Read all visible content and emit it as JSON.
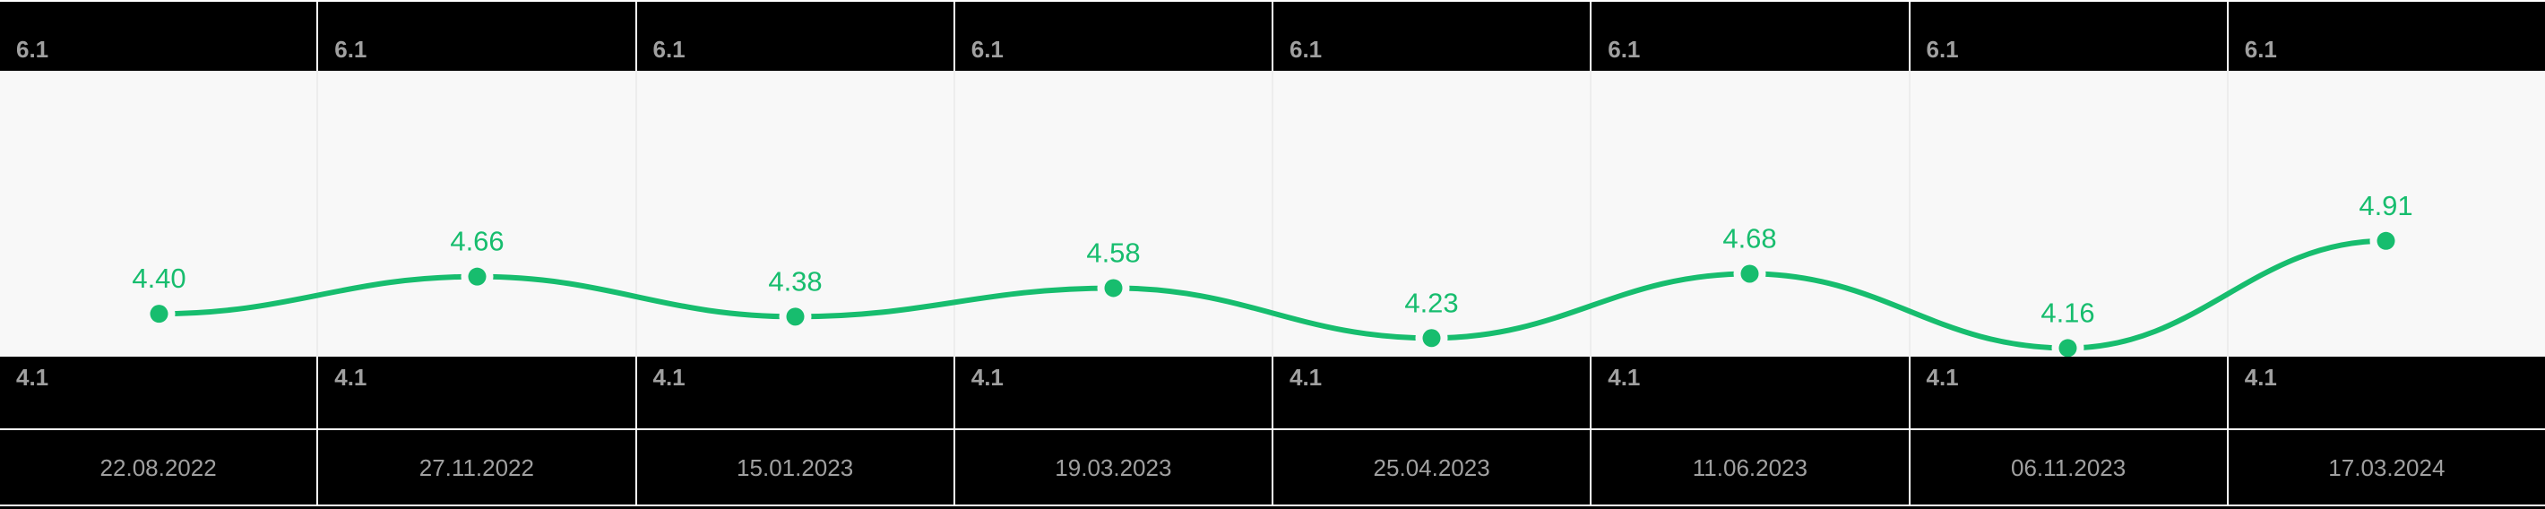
{
  "colors": {
    "accent_green": "#17bd6e",
    "label_gray": "#a0a0a0",
    "row_black": "#000000",
    "plot_bg": "#f8f8f8",
    "plot_grid_line": "#ededed",
    "divider_white": "#ffffff"
  },
  "chart_data": {
    "type": "line",
    "x": [
      "22.08.2022",
      "27.11.2022",
      "15.01.2023",
      "19.03.2023",
      "25.04.2023",
      "11.06.2023",
      "06.11.2023",
      "17.03.2024"
    ],
    "values": [
      4.4,
      4.66,
      4.38,
      4.58,
      4.23,
      4.68,
      4.16,
      4.91
    ],
    "value_labels": [
      "4.40",
      "4.66",
      "4.38",
      "4.58",
      "4.23",
      "4.68",
      "4.16",
      "4.91"
    ],
    "max_labels": [
      "6.1",
      "6.1",
      "6.1",
      "6.1",
      "6.1",
      "6.1",
      "6.1",
      "6.1"
    ],
    "min_labels": [
      "4.1",
      "4.1",
      "4.1",
      "4.1",
      "4.1",
      "4.1",
      "4.1",
      "4.1"
    ],
    "ylim": [
      4.1,
      6.1
    ],
    "title": "",
    "xlabel": "",
    "ylabel": "",
    "grid": true,
    "legend": false,
    "marker_radius": 10,
    "line_width": 6
  }
}
